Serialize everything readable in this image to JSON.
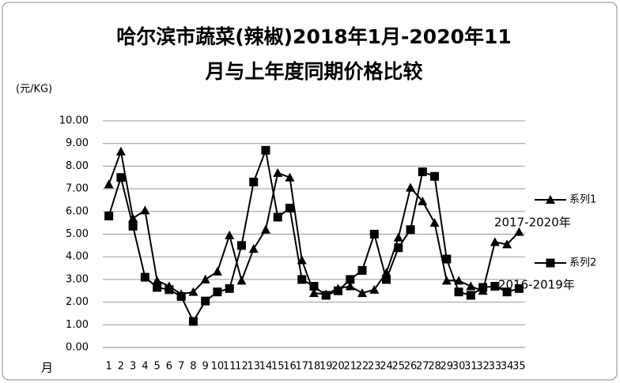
{
  "chart_data": {
    "type": "line",
    "title": [
      "哈尔滨市蔬菜(辣椒)2018年1月-2020年11",
      "月与上年度同期价格比较"
    ],
    "y_label": "(元/KG)",
    "x_label": "月",
    "categories": [
      "1",
      "2",
      "3",
      "4",
      "5",
      "6",
      "7",
      "8",
      "9",
      "10",
      "11",
      "12",
      "13",
      "14",
      "15",
      "16",
      "17",
      "18",
      "19",
      "20",
      "21",
      "22",
      "23",
      "24",
      "25",
      "26",
      "27",
      "28",
      "29",
      "30",
      "31",
      "32",
      "33",
      "34",
      "35"
    ],
    "series": [
      {
        "name": "系列1",
        "color": "#000000",
        "marker": "triangle",
        "values": [
          7.2,
          8.65,
          5.7,
          6.05,
          2.95,
          2.7,
          2.35,
          2.45,
          3.0,
          3.35,
          4.95,
          2.95,
          4.35,
          5.2,
          7.7,
          7.5,
          3.85,
          2.4,
          2.35,
          2.6,
          2.7,
          2.4,
          2.55,
          3.3,
          4.85,
          7.05,
          6.45,
          5.5,
          2.95,
          2.95,
          2.7,
          2.5,
          4.65,
          4.55,
          5.1
        ]
      },
      {
        "name": "系列2",
        "color": "#000000",
        "marker": "square",
        "values": [
          5.8,
          7.5,
          5.35,
          3.1,
          2.65,
          2.55,
          2.25,
          1.15,
          2.05,
          2.45,
          2.6,
          4.5,
          7.3,
          8.7,
          5.75,
          6.15,
          3.0,
          2.7,
          2.3,
          2.5,
          3.0,
          3.4,
          5.0,
          3.0,
          4.4,
          5.2,
          7.75,
          7.55,
          3.9,
          2.45,
          2.3,
          2.65,
          2.7,
          2.45,
          2.6
        ]
      }
    ],
    "annotations": [
      "2017-2020年",
      "2016-2019年"
    ],
    "ylim": [
      0,
      10
    ],
    "yticks": [
      {
        "value": 0,
        "label": "0.00"
      },
      {
        "value": 1,
        "label": "1.00"
      },
      {
        "value": 2,
        "label": "2.00"
      },
      {
        "value": 3,
        "label": "3.00"
      },
      {
        "value": 4,
        "label": "4.00"
      },
      {
        "value": 5,
        "label": "5.00"
      },
      {
        "value": 6,
        "label": "6.00"
      },
      {
        "value": 7,
        "label": "7.00"
      },
      {
        "value": 8,
        "label": "8.00"
      },
      {
        "value": 9,
        "label": "9.00"
      },
      {
        "value": 10,
        "label": "10.00"
      }
    ],
    "grid": true,
    "legend": "right"
  }
}
